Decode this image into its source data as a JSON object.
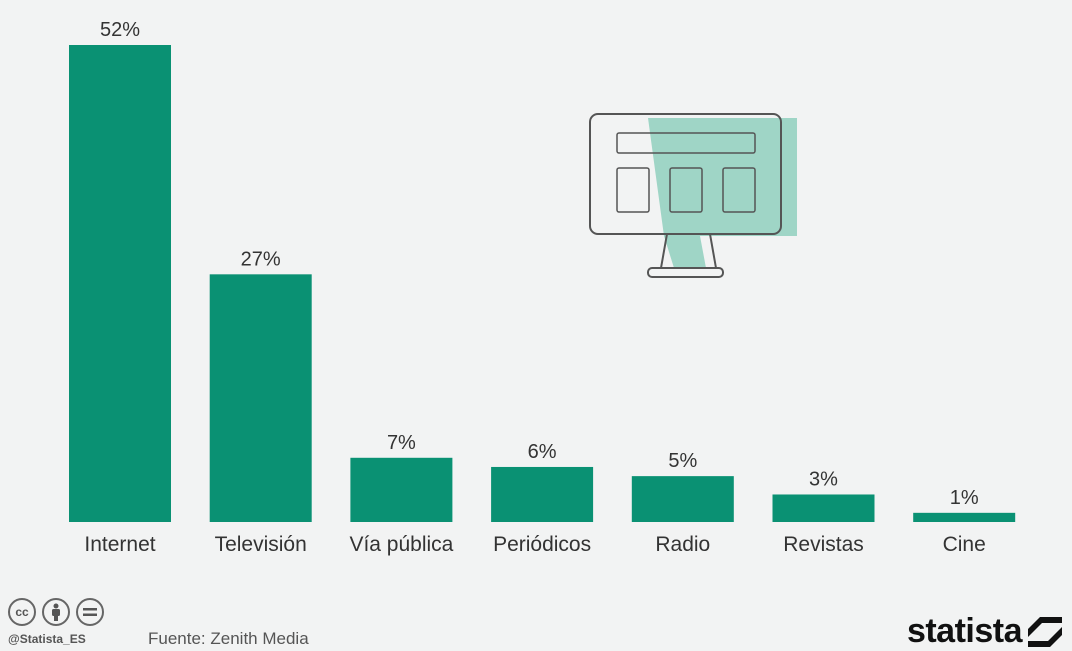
{
  "chart_data": {
    "type": "bar",
    "categories": [
      "Internet",
      "Televisión",
      "Vía pública",
      "Periódicos",
      "Radio",
      "Revistas",
      "Cine"
    ],
    "values": [
      52,
      27,
      7,
      6,
      5,
      3,
      1
    ],
    "value_labels": [
      "52%",
      "27%",
      "7%",
      "6%",
      "5%",
      "3%",
      "1%"
    ],
    "ylim": [
      0,
      52
    ],
    "grid": false,
    "bar_color": "#0a9173"
  },
  "colors": {
    "background": "#f2f3f3",
    "bar": "#0a9173",
    "icon_accent": "#9fd5c6",
    "icon_stroke": "#555555"
  },
  "footer": {
    "license_icons": [
      "cc-icon",
      "attribution-icon",
      "no-derivatives-icon"
    ],
    "handle": "@Statista_ES",
    "source": "Fuente: Zenith Media",
    "brand": "statista"
  }
}
